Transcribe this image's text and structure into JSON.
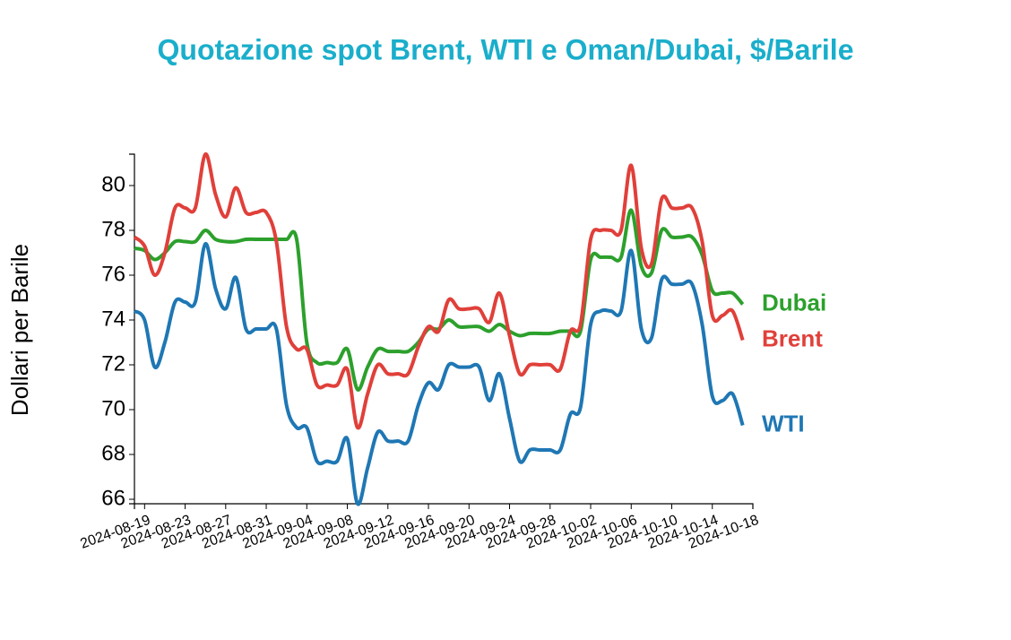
{
  "chart_data": {
    "type": "line",
    "title": "Quotazione spot Brent, WTI e Oman/Dubai, $/Barile",
    "y_label": "Dollari per Barile",
    "x": [
      "2024-08-18",
      "2024-08-19",
      "2024-08-20",
      "2024-08-21",
      "2024-08-22",
      "2024-08-23",
      "2024-08-24",
      "2024-08-25",
      "2024-08-26",
      "2024-08-27",
      "2024-08-28",
      "2024-08-29",
      "2024-08-30",
      "2024-08-31",
      "2024-09-01",
      "2024-09-02",
      "2024-09-03",
      "2024-09-04",
      "2024-09-05",
      "2024-09-06",
      "2024-09-07",
      "2024-09-08",
      "2024-09-09",
      "2024-09-10",
      "2024-09-11",
      "2024-09-12",
      "2024-09-13",
      "2024-09-14",
      "2024-09-15",
      "2024-09-16",
      "2024-09-17",
      "2024-09-18",
      "2024-09-19",
      "2024-09-20",
      "2024-09-21",
      "2024-09-22",
      "2024-09-23",
      "2024-09-24",
      "2024-09-25",
      "2024-09-26",
      "2024-09-27",
      "2024-09-28",
      "2024-09-29",
      "2024-09-30",
      "2024-10-01",
      "2024-10-02",
      "2024-10-03",
      "2024-10-04",
      "2024-10-05",
      "2024-10-06",
      "2024-10-07",
      "2024-10-08",
      "2024-10-09",
      "2024-10-10",
      "2024-10-11",
      "2024-10-12",
      "2024-10-13",
      "2024-10-14",
      "2024-10-15",
      "2024-10-16",
      "2024-10-17"
    ],
    "series": [
      {
        "name": "Dubai",
        "color": "#2ca02c",
        "values": [
          77.2,
          77.1,
          76.7,
          77.0,
          77.5,
          77.5,
          77.5,
          78.0,
          77.6,
          77.5,
          77.5,
          77.6,
          77.6,
          77.6,
          77.6,
          77.6,
          77.6,
          73.0,
          72.1,
          72.1,
          72.1,
          72.7,
          70.9,
          71.9,
          72.7,
          72.6,
          72.6,
          72.6,
          73.0,
          73.6,
          73.6,
          74.0,
          73.7,
          73.7,
          73.7,
          73.5,
          73.8,
          73.5,
          73.3,
          73.4,
          73.4,
          73.4,
          73.5,
          73.5,
          73.5,
          76.7,
          76.8,
          76.8,
          76.8,
          78.9,
          76.4,
          76.1,
          78.0,
          77.7,
          77.7,
          77.7,
          76.9,
          75.3,
          75.2,
          75.2,
          74.7
        ]
      },
      {
        "name": "Brent",
        "color": "#e0403a",
        "values": [
          77.7,
          77.3,
          76.0,
          77.0,
          79.0,
          79.0,
          79.0,
          81.4,
          79.6,
          78.6,
          79.9,
          78.8,
          78.8,
          78.8,
          77.5,
          73.7,
          72.7,
          72.7,
          71.1,
          71.1,
          71.1,
          71.8,
          69.2,
          70.7,
          72.0,
          71.6,
          71.6,
          71.6,
          72.8,
          73.7,
          73.5,
          74.9,
          74.5,
          74.5,
          74.5,
          73.9,
          75.2,
          73.3,
          71.6,
          72.0,
          72.0,
          72.0,
          71.8,
          73.5,
          73.8,
          77.6,
          78.0,
          78.0,
          78.0,
          80.9,
          77.2,
          76.5,
          79.4,
          79.0,
          79.0,
          79.0,
          77.5,
          74.2,
          74.2,
          74.4,
          73.1
        ]
      },
      {
        "name": "WTI",
        "color": "#1f77b4",
        "values": [
          74.4,
          74.0,
          71.9,
          73.0,
          74.8,
          74.8,
          74.8,
          77.4,
          75.4,
          74.5,
          75.9,
          73.6,
          73.6,
          73.6,
          73.6,
          70.2,
          69.2,
          69.2,
          67.7,
          67.7,
          67.7,
          68.7,
          65.8,
          67.4,
          69.0,
          68.6,
          68.6,
          68.6,
          70.2,
          71.2,
          70.9,
          72.0,
          71.9,
          71.9,
          71.9,
          70.4,
          71.6,
          69.6,
          67.7,
          68.2,
          68.2,
          68.2,
          68.2,
          69.8,
          70.1,
          73.8,
          74.4,
          74.4,
          74.4,
          77.1,
          73.6,
          73.2,
          75.8,
          75.6,
          75.6,
          75.6,
          73.8,
          70.6,
          70.4,
          70.7,
          69.3
        ]
      }
    ],
    "xlim": [
      "2024-08-18",
      "2024-10-18"
    ],
    "xticks": [
      "2024-08-19",
      "2024-08-23",
      "2024-08-27",
      "2024-08-31",
      "2024-09-04",
      "2024-09-08",
      "2024-09-12",
      "2024-09-16",
      "2024-09-20",
      "2024-09-24",
      "2024-09-28",
      "2024-10-02",
      "2024-10-06",
      "2024-10-10",
      "2024-10-14",
      "2024-10-18"
    ],
    "ylim": [
      65.8,
      81.4
    ],
    "yticks": [
      66,
      68,
      70,
      72,
      74,
      76,
      78,
      80
    ],
    "title_color": "#1aaecb"
  }
}
